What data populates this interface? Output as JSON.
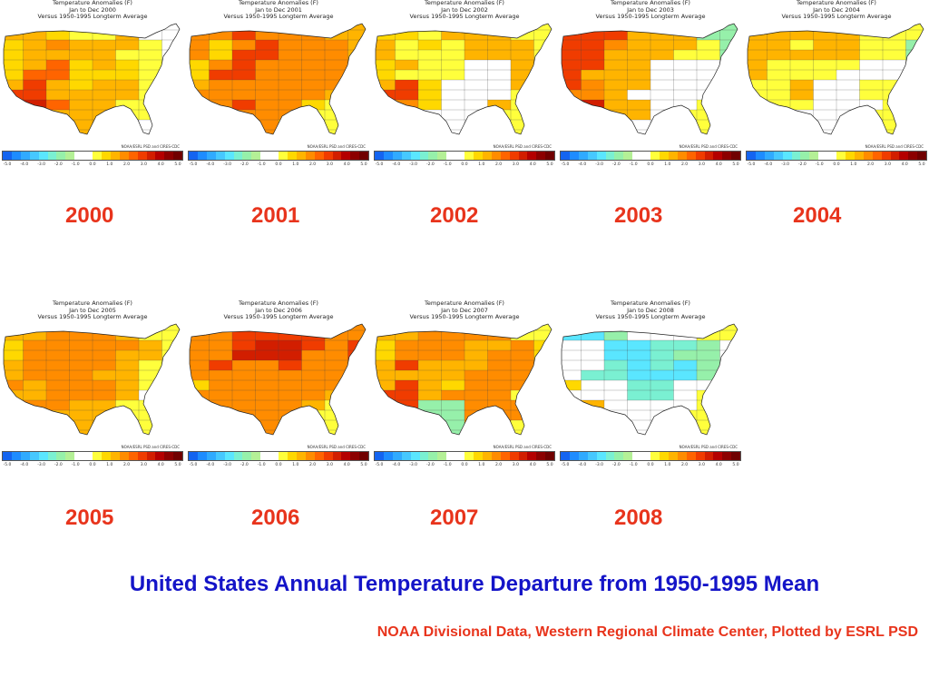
{
  "panel_caption": {
    "line1": "Temperature Anomalies (F)",
    "line3": "Versus 1950-1995 Longterm Average",
    "credit": "NOAA/ESRL PSD and CIRES-CDC"
  },
  "colorbar": {
    "ticks": [
      "-5.0",
      "-4.0",
      "-3.0",
      "-2.0",
      "-1.0",
      "0.0",
      "1.0",
      "2.0",
      "3.0",
      "4.0",
      "5.0"
    ],
    "colors": [
      "#1464f0",
      "#1e8cff",
      "#30aaff",
      "#46c8ff",
      "#5ae6ff",
      "#7af0d2",
      "#96f0aa",
      "#b4f096",
      "#ffffff",
      "#ffffff",
      "#ffff3c",
      "#ffd800",
      "#ffb400",
      "#ff8c00",
      "#ff6400",
      "#f03c00",
      "#d21e00",
      "#b40000",
      "#8c0000",
      "#700000"
    ]
  },
  "panels": [
    {
      "year": "2000",
      "period": "Jan to Dec 2000"
    },
    {
      "year": "2001",
      "period": "Jan to Dec 2001"
    },
    {
      "year": "2002",
      "period": "Jan to Dec 2002"
    },
    {
      "year": "2003",
      "period": "Jan to Dec 2003"
    },
    {
      "year": "2004",
      "period": "Jan to Dec 2004"
    },
    {
      "year": "2005",
      "period": "Jan to Dec 2005"
    },
    {
      "year": "2006",
      "period": "Jan to Dec 2006"
    },
    {
      "year": "2007",
      "period": "Jan to Dec 2007"
    },
    {
      "year": "2008",
      "period": "Jan to Dec 2008"
    }
  ],
  "title": "United States Annual Temperature Departure from 1950-1995 Mean",
  "source": "NOAA Divisional Data, Western Regional Climate Center, Plotted by ESRL PSD"
}
